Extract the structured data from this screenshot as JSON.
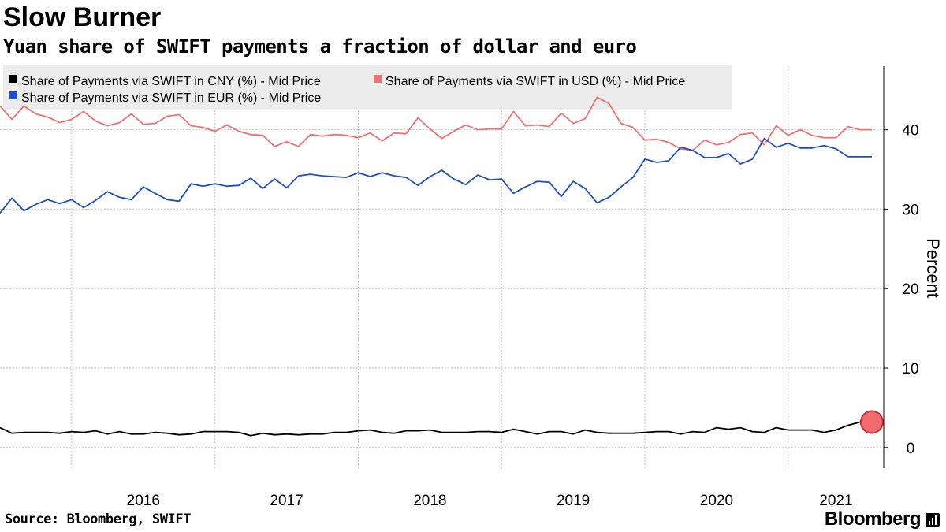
{
  "header": {
    "title": "Slow Burner",
    "subtitle": "Yuan share of SWIFT payments a fraction of dollar and euro"
  },
  "footer": {
    "source": "Source: Bloomberg, SWIFT",
    "brand": "Bloomberg"
  },
  "colors": {
    "cny": "#000000",
    "usd": "#f07272",
    "eur": "#1f4fc4",
    "grid": "#c4c4c4",
    "highlight": "#f06a70",
    "legend_bg": "#ececec"
  },
  "chart_data": {
    "type": "line",
    "title": "Slow Burner",
    "subtitle": "Yuan share of SWIFT payments a fraction of dollar and euro",
    "ylabel": "Percent",
    "ylim": [
      -2.6,
      48
    ],
    "yticks": [
      0,
      10,
      20,
      30,
      40
    ],
    "xlim": [
      "2015-07",
      "2021-09"
    ],
    "xticks": [
      {
        "label": "2016",
        "start": "2016-01"
      },
      {
        "label": "2017",
        "start": "2017-01"
      },
      {
        "label": "2018",
        "start": "2018-01"
      },
      {
        "label": "2019",
        "start": "2019-01"
      },
      {
        "label": "2020",
        "start": "2020-01"
      },
      {
        "label": "2021",
        "start": "2021-01"
      }
    ],
    "grid": true,
    "legend_position": "top-left",
    "x": [
      "2015-07",
      "2015-08",
      "2015-09",
      "2015-10",
      "2015-11",
      "2015-12",
      "2016-01",
      "2016-02",
      "2016-03",
      "2016-04",
      "2016-05",
      "2016-06",
      "2016-07",
      "2016-08",
      "2016-09",
      "2016-10",
      "2016-11",
      "2016-12",
      "2017-01",
      "2017-02",
      "2017-03",
      "2017-04",
      "2017-05",
      "2017-06",
      "2017-07",
      "2017-08",
      "2017-09",
      "2017-10",
      "2017-11",
      "2017-12",
      "2018-01",
      "2018-02",
      "2018-03",
      "2018-04",
      "2018-05",
      "2018-06",
      "2018-07",
      "2018-08",
      "2018-09",
      "2018-10",
      "2018-11",
      "2018-12",
      "2019-01",
      "2019-02",
      "2019-03",
      "2019-04",
      "2019-05",
      "2019-06",
      "2019-07",
      "2019-08",
      "2019-09",
      "2019-10",
      "2019-11",
      "2019-12",
      "2020-01",
      "2020-02",
      "2020-03",
      "2020-04",
      "2020-05",
      "2020-06",
      "2020-07",
      "2020-08",
      "2020-09",
      "2020-10",
      "2020-11",
      "2020-12",
      "2021-01",
      "2021-02",
      "2021-03",
      "2021-04",
      "2021-05",
      "2021-06",
      "2021-07",
      "2021-08"
    ],
    "series": [
      {
        "name": "Share of Payments via SWIFT in CNY (%) - Mid Price",
        "key": "cny",
        "values": [
          2.5,
          1.8,
          1.9,
          1.9,
          1.9,
          1.8,
          2.0,
          1.9,
          2.1,
          1.7,
          2.0,
          1.7,
          1.7,
          1.9,
          1.8,
          1.6,
          1.7,
          2.0,
          2.0,
          2.0,
          1.9,
          1.5,
          1.8,
          1.6,
          1.7,
          1.6,
          1.7,
          1.7,
          1.9,
          1.9,
          2.1,
          2.2,
          1.9,
          1.8,
          2.1,
          2.1,
          2.2,
          1.9,
          1.9,
          1.9,
          2.0,
          2.0,
          1.9,
          2.3,
          2.0,
          1.7,
          2.0,
          2.0,
          1.7,
          2.2,
          1.9,
          1.8,
          1.8,
          1.8,
          1.9,
          2.0,
          2.0,
          1.7,
          2.0,
          1.9,
          2.5,
          2.3,
          2.5,
          2.0,
          1.9,
          2.5,
          2.2,
          2.2,
          2.2,
          1.9,
          2.2,
          2.8,
          3.2,
          3.2
        ]
      },
      {
        "name": "Share of Payments via SWIFT in USD (%) - Mid Price",
        "key": "usd",
        "values": [
          43.0,
          41.3,
          43.0,
          42.0,
          41.6,
          40.9,
          41.3,
          42.3,
          41.1,
          40.5,
          40.9,
          42.0,
          40.7,
          40.8,
          41.7,
          41.9,
          40.5,
          40.3,
          39.8,
          40.6,
          39.8,
          39.4,
          39.3,
          37.9,
          38.5,
          37.9,
          39.4,
          39.2,
          39.4,
          39.3,
          39.0,
          39.6,
          38.6,
          39.6,
          39.5,
          41.5,
          40.1,
          38.9,
          39.8,
          40.6,
          40.0,
          40.1,
          40.1,
          42.3,
          40.5,
          40.6,
          40.4,
          42.1,
          40.8,
          41.4,
          44.1,
          43.3,
          40.8,
          40.3,
          38.7,
          38.8,
          38.4,
          37.6,
          37.4,
          38.7,
          38.1,
          38.4,
          39.4,
          39.6,
          38.1,
          40.5,
          39.3,
          40.0,
          39.3,
          39.0,
          39.0,
          40.4,
          40.0,
          40.0
        ]
      },
      {
        "name": "Share of Payments via SWIFT in EUR (%) - Mid Price",
        "key": "eur",
        "values": [
          29.5,
          31.4,
          29.8,
          30.6,
          31.2,
          30.7,
          31.2,
          30.2,
          31.1,
          32.2,
          31.5,
          31.2,
          32.8,
          32.0,
          31.2,
          31.0,
          33.2,
          32.9,
          33.2,
          32.9,
          33.0,
          33.9,
          32.6,
          33.8,
          32.7,
          34.2,
          34.4,
          34.2,
          34.1,
          34.0,
          34.6,
          34.1,
          34.6,
          34.2,
          34.0,
          33.0,
          34.1,
          34.9,
          33.8,
          33.1,
          34.3,
          33.7,
          33.8,
          32.0,
          32.8,
          33.5,
          33.4,
          31.6,
          33.5,
          32.6,
          30.8,
          31.5,
          32.8,
          34.0,
          36.3,
          35.9,
          36.1,
          37.8,
          37.4,
          36.5,
          36.5,
          37.0,
          35.7,
          36.3,
          38.9,
          37.8,
          38.3,
          37.7,
          37.7,
          38.0,
          37.6,
          36.6,
          36.6,
          36.6
        ]
      }
    ]
  }
}
